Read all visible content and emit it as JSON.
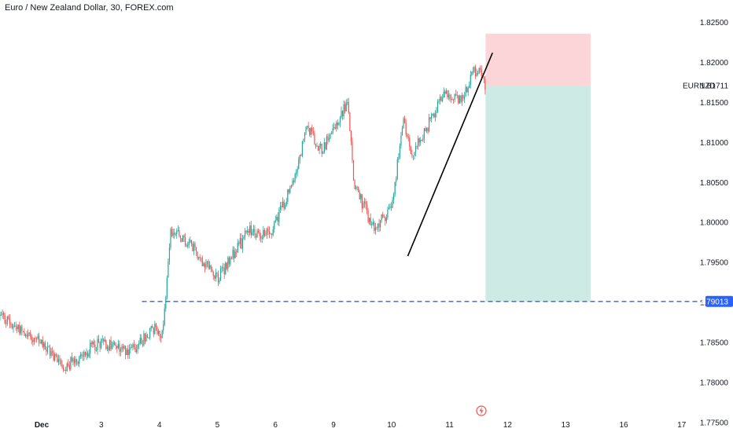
{
  "colors": {
    "up": "#26a69a",
    "down": "#ef5350",
    "stop_zone": "#fcd5d8",
    "target_zone": "#cdeae4",
    "level_line": "#2962ff",
    "trendline": "#000000",
    "event_icon": "#ef5350"
  },
  "icons": {
    "event": "lightning-bolt-icon"
  },
  "chart_data": {
    "type": "candlestick",
    "title": "Euro / New Zealand Dollar, 30, FOREX.com",
    "symbol": "EURNZD",
    "price_axis": {
      "ticks": [
        "1.82500",
        "1.82000",
        "1.81500",
        "1.81000",
        "1.80500",
        "1.80000",
        "1.79500",
        "1.79000",
        "1.78500",
        "1.78000",
        "1.77500"
      ],
      "ylim": [
        1.7748,
        1.8278
      ]
    },
    "date_axis": {
      "labels": [
        "Dec",
        "3",
        "4",
        "5",
        "6",
        "9",
        "10",
        "11",
        "12",
        "13",
        "16",
        "17"
      ],
      "x_index": [
        0,
        1,
        2,
        3,
        4,
        5,
        6,
        7,
        8,
        9,
        10,
        11
      ]
    },
    "last_price": {
      "label": "EURNZD",
      "value": "1.81711"
    },
    "horizontal_level": {
      "value": "1.79013"
    },
    "position": {
      "type": "short",
      "entry": 1.81711,
      "stop": 1.8236,
      "target": 1.79013,
      "start_x": 7.62,
      "end_x": 9.43
    },
    "trendline": {
      "x": [
        6.28,
        7.74
      ],
      "y": [
        1.7958,
        1.8212
      ]
    },
    "key_points": {
      "x": [
        -0.73,
        -0.3,
        0.4,
        0.95,
        1.5,
        1.95,
        2.05,
        2.2,
        2.55,
        3.0,
        3.55,
        3.9,
        4.3,
        4.55,
        4.8,
        5.25,
        5.35,
        5.7,
        6.0,
        6.2,
        6.35,
        6.55,
        6.9,
        7.2,
        7.4,
        7.55,
        7.62
      ],
      "y": [
        1.7882,
        1.7863,
        1.782,
        1.785,
        1.784,
        1.787,
        1.786,
        1.799,
        1.797,
        1.793,
        1.799,
        1.7985,
        1.805,
        1.812,
        1.809,
        1.815,
        1.805,
        1.799,
        1.802,
        1.8125,
        1.8085,
        1.811,
        1.816,
        1.815,
        1.819,
        1.819,
        1.8172
      ]
    }
  }
}
